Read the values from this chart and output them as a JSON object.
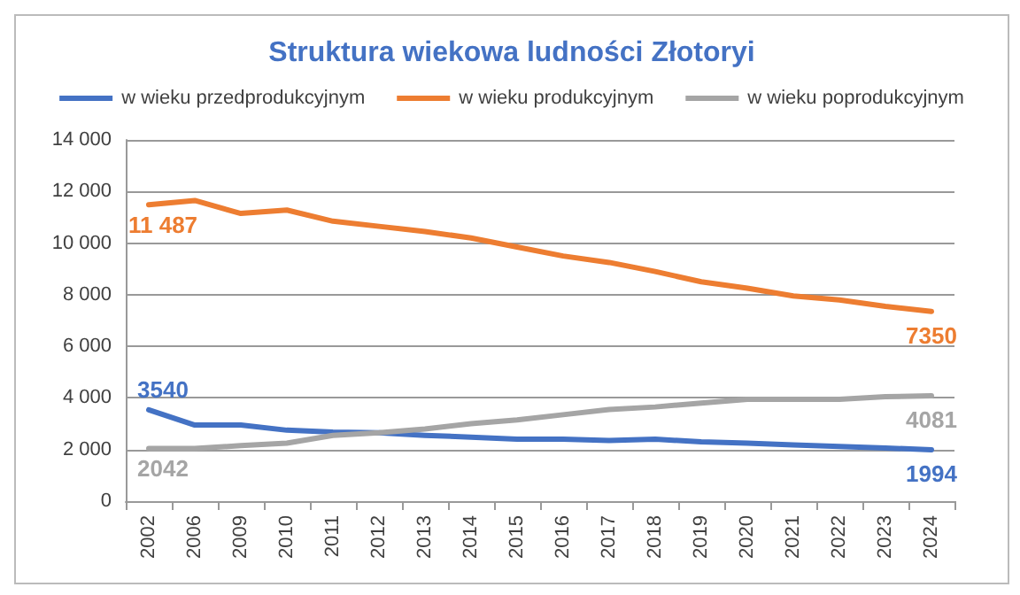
{
  "chart_data": {
    "type": "line",
    "title": "Struktura wiekowa ludności Złotoryi",
    "categories": [
      "2002",
      "2006",
      "2009",
      "2010",
      "2011",
      "2012",
      "2013",
      "2014",
      "2015",
      "2016",
      "2017",
      "2018",
      "2019",
      "2020",
      "2021",
      "2022",
      "2023",
      "2024"
    ],
    "series": [
      {
        "name": "w wieku przedprodukcyjnym",
        "color": "#4472c4",
        "values": [
          3540,
          2950,
          2950,
          2750,
          2680,
          2650,
          2550,
          2480,
          2400,
          2400,
          2350,
          2400,
          2300,
          2250,
          2180,
          2120,
          2060,
          1994
        ],
        "value_labels": [
          "3540",
          null,
          null,
          null,
          null,
          null,
          null,
          null,
          null,
          null,
          null,
          null,
          null,
          null,
          null,
          null,
          null,
          "1994"
        ]
      },
      {
        "name": "w wieku produkcyjnym",
        "color": "#ed7d31",
        "values": [
          11487,
          11650,
          11150,
          11280,
          10850,
          10650,
          10450,
          10200,
          9850,
          9500,
          9250,
          8900,
          8500,
          8250,
          7950,
          7800,
          7550,
          7350
        ],
        "value_labels": [
          "11 487",
          null,
          null,
          null,
          null,
          null,
          null,
          null,
          null,
          null,
          null,
          null,
          null,
          null,
          null,
          null,
          null,
          "7350"
        ]
      },
      {
        "name": "w wieku poprodukcyjnym",
        "color": "#a5a5a5",
        "values": [
          2042,
          2042,
          2150,
          2250,
          2550,
          2650,
          2800,
          3000,
          3150,
          3350,
          3550,
          3650,
          3800,
          3950,
          3950,
          3950,
          4050,
          4081
        ],
        "value_labels": [
          "2042",
          null,
          null,
          null,
          null,
          null,
          null,
          null,
          null,
          null,
          null,
          null,
          null,
          null,
          null,
          null,
          null,
          "4081"
        ]
      }
    ],
    "ylim": [
      0,
      14000
    ],
    "yticks": [
      {
        "value": 0,
        "label": "0"
      },
      {
        "value": 2000,
        "label": "2 000"
      },
      {
        "value": 4000,
        "label": "4 000"
      },
      {
        "value": 6000,
        "label": "6 000"
      },
      {
        "value": 8000,
        "label": "8 000"
      },
      {
        "value": 10000,
        "label": "10 000"
      },
      {
        "value": 12000,
        "label": "12 000"
      },
      {
        "value": 14000,
        "label": "14 000"
      }
    ],
    "grid": "y",
    "legend": "top",
    "marker": "none",
    "line_style": "solid"
  }
}
